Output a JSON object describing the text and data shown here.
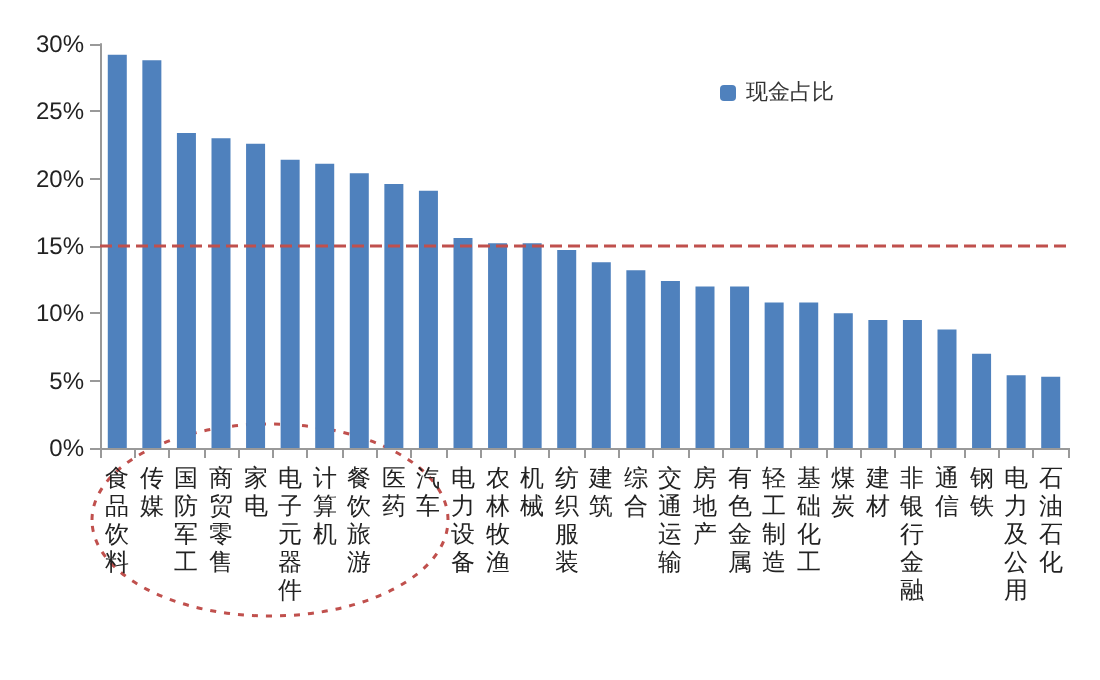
{
  "chart_data": {
    "type": "bar",
    "categories": [
      "食品饮料",
      "传媒",
      "国防军工",
      "商贸零售",
      "家电",
      "电子元器件",
      "计算机",
      "餐饮旅游",
      "医药",
      "汽车",
      "电力设备",
      "农林牧渔",
      "机械",
      "纺织服装",
      "建筑",
      "综合",
      "交通运输",
      "房地产",
      "有色金属",
      "轻工制造",
      "基础化工",
      "煤炭",
      "建材",
      "非银行金融",
      "通信",
      "钢铁",
      "电力及公用",
      "石油石化"
    ],
    "series": [
      {
        "name": "现金占比",
        "color": "#4f81bd",
        "values": [
          29.2,
          28.8,
          23.4,
          23.0,
          22.6,
          21.4,
          21.1,
          20.4,
          19.6,
          19.1,
          15.6,
          15.2,
          15.2,
          14.7,
          13.8,
          13.2,
          12.4,
          12.0,
          12.0,
          10.8,
          10.8,
          10.0,
          9.5,
          9.5,
          8.8,
          7.0,
          5.4,
          5.3
        ]
      }
    ],
    "ylim": [
      0,
      30
    ],
    "yticks": [
      {
        "value": 0,
        "label": "0%"
      },
      {
        "value": 5,
        "label": "5%"
      },
      {
        "value": 10,
        "label": "10%"
      },
      {
        "value": 15,
        "label": "15%"
      },
      {
        "value": 20,
        "label": "20%"
      },
      {
        "value": 25,
        "label": "25%"
      },
      {
        "value": 30,
        "label": "30%"
      }
    ],
    "ref_lines": [
      {
        "axis": "y",
        "value": 15,
        "color": "#c0504d",
        "line_style": "dashed"
      }
    ],
    "grid": false,
    "legend": "top right"
  }
}
